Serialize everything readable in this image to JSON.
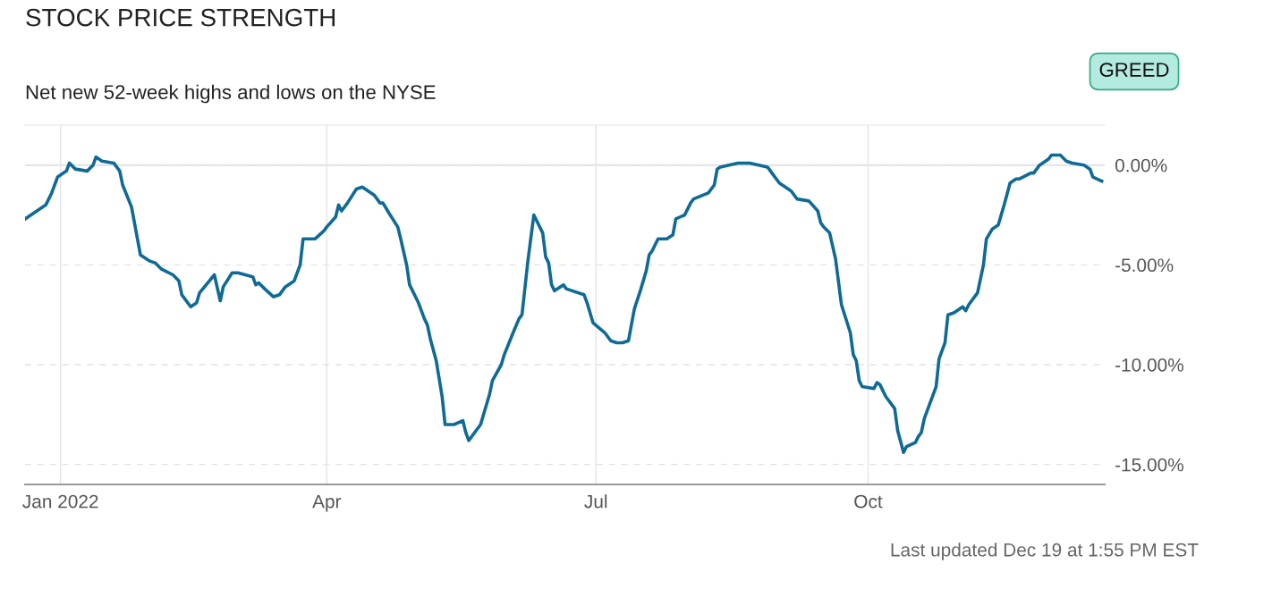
{
  "chart_data": {
    "type": "line",
    "title": "STOCK PRICE STRENGTH",
    "subtitle": "Net new 52-week highs and lows on the NYSE",
    "annotations": [
      "GREED",
      "Last updated Dec 19 at 1:55 PM EST"
    ],
    "x": [
      "2021-12-20",
      "2021-12-24",
      "2021-12-27",
      "2021-12-29",
      "2021-12-31",
      "2022-01-03",
      "2022-01-04",
      "2022-01-06",
      "2022-01-10",
      "2022-01-12",
      "2022-01-13",
      "2022-01-15",
      "2022-01-19",
      "2022-01-21",
      "2022-01-22",
      "2022-01-25",
      "2022-01-26",
      "2022-01-28",
      "2022-01-31",
      "2022-02-02",
      "2022-02-04",
      "2022-02-08",
      "2022-02-10",
      "2022-02-11",
      "2022-02-14",
      "2022-02-16",
      "2022-02-17",
      "2022-02-22",
      "2022-02-24",
      "2022-02-25",
      "2022-02-28",
      "2022-03-02",
      "2022-03-07",
      "2022-03-08",
      "2022-03-09",
      "2022-03-11",
      "2022-03-14",
      "2022-03-16",
      "2022-03-18",
      "2022-03-21",
      "2022-03-23",
      "2022-03-24",
      "2022-03-28",
      "2022-03-31",
      "2022-04-01",
      "2022-04-04",
      "2022-04-05",
      "2022-04-06",
      "2022-04-08",
      "2022-04-11",
      "2022-04-13",
      "2022-04-17",
      "2022-04-19",
      "2022-04-20",
      "2022-04-22",
      "2022-04-25",
      "2022-04-26",
      "2022-04-28",
      "2022-04-29",
      "2022-05-02",
      "2022-05-04",
      "2022-05-05",
      "2022-05-06",
      "2022-05-08",
      "2022-05-10",
      "2022-05-11",
      "2022-05-14",
      "2022-05-17",
      "2022-05-18",
      "2022-05-19",
      "2022-05-23",
      "2022-05-26",
      "2022-05-27",
      "2022-05-30",
      "2022-05-31",
      "2022-06-03",
      "2022-06-05",
      "2022-06-06",
      "2022-06-08",
      "2022-06-10",
      "2022-06-13",
      "2022-06-14",
      "2022-06-15",
      "2022-06-16",
      "2022-06-17",
      "2022-06-20",
      "2022-06-21",
      "2022-06-23",
      "2022-06-27",
      "2022-06-28",
      "2022-06-30",
      "2022-07-04",
      "2022-07-06",
      "2022-07-08",
      "2022-07-10",
      "2022-07-12",
      "2022-07-14",
      "2022-07-16",
      "2022-07-18",
      "2022-07-19",
      "2022-07-20",
      "2022-07-22",
      "2022-07-25",
      "2022-07-27",
      "2022-07-28",
      "2022-07-31",
      "2022-08-02",
      "2022-08-03",
      "2022-08-08",
      "2022-08-10",
      "2022-08-11",
      "2022-08-12",
      "2022-08-15",
      "2022-08-18",
      "2022-08-22",
      "2022-08-25",
      "2022-08-28",
      "2022-08-30",
      "2022-09-01",
      "2022-09-05",
      "2022-09-07",
      "2022-09-11",
      "2022-09-14",
      "2022-09-15",
      "2022-09-16",
      "2022-09-18",
      "2022-09-20",
      "2022-09-22",
      "2022-09-25",
      "2022-09-26",
      "2022-09-27",
      "2022-09-28",
      "2022-09-29",
      "2022-10-03",
      "2022-10-04",
      "2022-10-05",
      "2022-10-07",
      "2022-10-10",
      "2022-10-11",
      "2022-10-13",
      "2022-10-14",
      "2022-10-17",
      "2022-10-18",
      "2022-10-19",
      "2022-10-20",
      "2022-10-24",
      "2022-10-25",
      "2022-10-27",
      "2022-10-28",
      "2022-10-30",
      "2022-11-02",
      "2022-11-03",
      "2022-11-04",
      "2022-11-07",
      "2022-11-09",
      "2022-11-10",
      "2022-11-12",
      "2022-11-14",
      "2022-11-16",
      "2022-11-18",
      "2022-11-20",
      "2022-11-21",
      "2022-11-25",
      "2022-11-26",
      "2022-11-28",
      "2022-12-01",
      "2022-12-02",
      "2022-12-05",
      "2022-12-07",
      "2022-12-09",
      "2022-12-13",
      "2022-12-15",
      "2022-12-16",
      "2022-12-19"
    ],
    "series": [
      {
        "color": "#0f6a96",
        "values": [
          -2.7,
          -2.3,
          -2.0,
          -1.4,
          -0.6,
          -0.3,
          0.1,
          -0.2,
          -0.3,
          0.0,
          0.4,
          0.2,
          0.1,
          -0.3,
          -1.0,
          -2.1,
          -2.9,
          -4.5,
          -4.8,
          -4.9,
          -5.2,
          -5.5,
          -5.8,
          -6.5,
          -7.1,
          -6.9,
          -6.4,
          -5.5,
          -6.8,
          -6.1,
          -5.4,
          -5.4,
          -5.6,
          -6.0,
          -5.9,
          -6.2,
          -6.6,
          -6.5,
          -6.1,
          -5.8,
          -5.0,
          -3.7,
          -3.7,
          -3.3,
          -3.1,
          -2.6,
          -2.0,
          -2.3,
          -1.9,
          -1.2,
          -1.1,
          -1.5,
          -1.9,
          -1.9,
          -2.4,
          -3.1,
          -3.7,
          -5.0,
          -6.0,
          -6.9,
          -7.7,
          -8.0,
          -8.7,
          -9.8,
          -11.6,
          -13.0,
          -13.0,
          -12.8,
          -13.4,
          -13.8,
          -13.0,
          -11.5,
          -10.8,
          -10.0,
          -9.5,
          -8.4,
          -7.7,
          -7.5,
          -4.8,
          -2.5,
          -3.4,
          -4.6,
          -4.9,
          -6.0,
          -6.3,
          -6.0,
          -6.2,
          -6.3,
          -6.5,
          -6.9,
          -7.9,
          -8.4,
          -8.8,
          -8.9,
          -8.9,
          -8.8,
          -7.2,
          -6.3,
          -5.3,
          -4.5,
          -4.3,
          -3.7,
          -3.7,
          -3.5,
          -2.7,
          -2.5,
          -1.9,
          -1.7,
          -1.4,
          -1.0,
          -0.2,
          -0.1,
          0.0,
          0.1,
          0.1,
          0.0,
          -0.1,
          -0.5,
          -0.9,
          -1.3,
          -1.7,
          -1.8,
          -2.3,
          -2.9,
          -3.1,
          -3.4,
          -4.7,
          -7.0,
          -8.4,
          -9.5,
          -9.8,
          -10.8,
          -11.1,
          -11.2,
          -10.9,
          -11.0,
          -11.6,
          -12.2,
          -13.3,
          -14.4,
          -14.1,
          -13.9,
          -13.6,
          -13.4,
          -12.7,
          -11.1,
          -9.7,
          -8.9,
          -7.5,
          -7.4,
          -7.1,
          -7.3,
          -7.0,
          -6.4,
          -5.0,
          -3.7,
          -3.2,
          -3.0,
          -2.0,
          -0.9,
          -0.7,
          -0.7,
          -0.4,
          -0.4,
          0.0,
          0.3,
          0.5,
          0.5,
          0.2,
          0.1,
          0.0,
          -0.2,
          -0.6,
          -0.8
        ]
      }
    ],
    "xlim": [
      "2021-12-20",
      "2022-12-20"
    ],
    "xticks": [
      {
        "value": "2022-01-01",
        "label": "Jan 2022"
      },
      {
        "value": "2022-04-01",
        "label": "Apr"
      },
      {
        "value": "2022-07-01",
        "label": "Jul"
      },
      {
        "value": "2022-10-01",
        "label": "Oct"
      }
    ],
    "ylim": [
      -16,
      2
    ],
    "yticks": [
      {
        "value": 0,
        "label": "0.00%"
      },
      {
        "value": -5,
        "label": "-5.00%"
      },
      {
        "value": -10,
        "label": "-10.00%"
      },
      {
        "value": -15,
        "label": "-15.00%"
      }
    ],
    "ref_lines": [
      {
        "axis": "y",
        "value": 0,
        "label": null,
        "color": "#e2e2e2",
        "line_style": "solid"
      }
    ],
    "grid": true,
    "legend": false,
    "marker": "none",
    "line_style": "solid"
  }
}
